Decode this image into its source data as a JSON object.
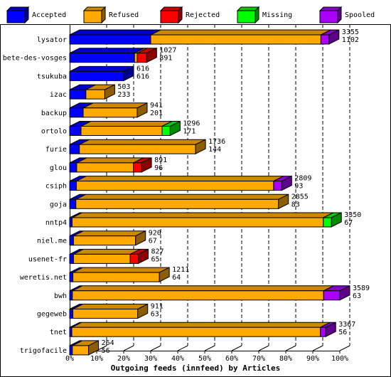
{
  "chart_data": {
    "type": "bar",
    "orientation": "horizontal",
    "stacked": true,
    "xlabel": "Outgoing feeds (innfeed) by Articles",
    "xlim": [
      0,
      100
    ],
    "x_unit": "%",
    "x_ticks": [
      "0%",
      "10%",
      "20%",
      "30%",
      "40%",
      "50%",
      "60%",
      "70%",
      "80%",
      "90%",
      "100%"
    ],
    "grid": "vertical dashed",
    "legend_position": "top",
    "legend": [
      {
        "name": "Accepted",
        "color": "#0000ff"
      },
      {
        "name": "Refused",
        "color": "#ffaa00"
      },
      {
        "name": "Rejected",
        "color": "#ff0000"
      },
      {
        "name": "Missing",
        "color": "#00ff00"
      },
      {
        "name": "Spooled",
        "color": "#aa00ff"
      }
    ],
    "categories": [
      "lysator",
      "bete-des-vosges",
      "tsukuba",
      "izac",
      "backup",
      "ortolo",
      "furie",
      "glou",
      "csiph",
      "goja",
      "nntp4",
      "niel.me",
      "usenet-fr",
      "weretis.net",
      "bwh",
      "gegeweb",
      "tnet",
      "trigofacile"
    ],
    "series": [
      {
        "name": "Accepted",
        "values": [
          30,
          24,
          20,
          6,
          5,
          4.2,
          3.6,
          2.6,
          2.5,
          2.3,
          0.9,
          1.4,
          1.4,
          1.2,
          1.0,
          1.2,
          0.8,
          1.0
        ]
      },
      {
        "name": "Refused",
        "values": [
          63,
          1,
          0,
          7,
          20,
          30,
          43,
          21,
          73,
          75,
          93,
          23,
          21,
          32,
          93,
          24,
          92,
          6
        ]
      },
      {
        "name": "Rejected",
        "values": [
          0,
          3.5,
          0,
          0,
          0,
          0,
          0,
          3,
          0,
          0,
          0,
          0,
          3,
          0,
          0,
          0,
          0,
          0
        ]
      },
      {
        "name": "Missing",
        "values": [
          0,
          0,
          0,
          0,
          0,
          3,
          0,
          0,
          0,
          0,
          3,
          0,
          0,
          0,
          0,
          0,
          0,
          0
        ]
      },
      {
        "name": "Spooled",
        "values": [
          3,
          0,
          0,
          0,
          0,
          0,
          0,
          0,
          3,
          0,
          0,
          0,
          0,
          0,
          6,
          0,
          2,
          0
        ]
      }
    ],
    "bar_labels": [
      [
        "3355",
        "1102"
      ],
      [
        "1027",
        "891"
      ],
      [
        "616",
        "616"
      ],
      [
        "503",
        "233"
      ],
      [
        "941",
        "201"
      ],
      [
        "1296",
        "171"
      ],
      [
        "1736",
        "144"
      ],
      [
        "891",
        "96"
      ],
      [
        "2809",
        "93"
      ],
      [
        "2855",
        "83"
      ],
      [
        "3350",
        "67"
      ],
      [
        "920",
        "67"
      ],
      [
        "827",
        "65"
      ],
      [
        "1211",
        "64"
      ],
      [
        "3589",
        "63"
      ],
      [
        "911",
        "63"
      ],
      [
        "3367",
        "56"
      ],
      [
        "264",
        "56"
      ]
    ]
  }
}
